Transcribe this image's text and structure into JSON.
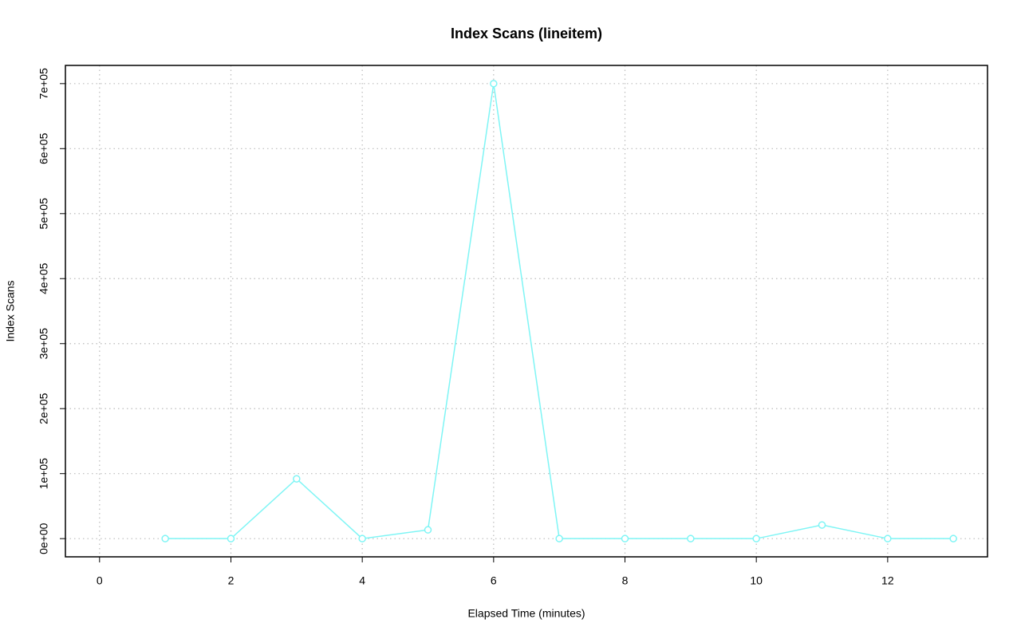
{
  "chart_data": {
    "type": "line",
    "title": "Index Scans (lineitem)",
    "x_label": "Elapsed Time (minutes)",
    "y_label": "Index Scans",
    "x": [
      1,
      2,
      3,
      4,
      5,
      6,
      7,
      8,
      9,
      10,
      11,
      12,
      13
    ],
    "values": [
      0,
      0,
      92000,
      0,
      13500,
      700000,
      0,
      0,
      0,
      0,
      21000,
      0,
      0
    ],
    "color": "#7ff5f5",
    "xlim": [
      -0.52,
      13.52
    ],
    "xticks": [
      0,
      2,
      4,
      6,
      8,
      10,
      12
    ],
    "ylim": [
      -28000,
      728000
    ],
    "yticks": [
      {
        "value": 0,
        "label": "0e+00"
      },
      {
        "value": 100000,
        "label": "1e+05"
      },
      {
        "value": 200000,
        "label": "2e+05"
      },
      {
        "value": 300000,
        "label": "3e+05"
      },
      {
        "value": 400000,
        "label": "4e+05"
      },
      {
        "value": 500000,
        "label": "5e+05"
      },
      {
        "value": 600000,
        "label": "6e+05"
      },
      {
        "value": 700000,
        "label": "7e+05"
      }
    ],
    "grid": true
  }
}
